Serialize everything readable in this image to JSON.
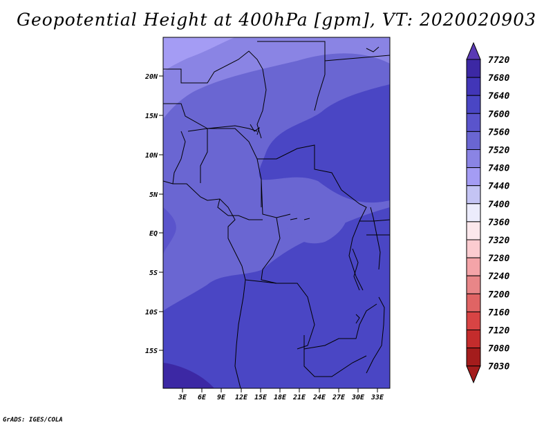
{
  "title": "Geopotential Height at 400hPa [gpm], VT: 2020020903",
  "footer": "GrADS: IGES/COLA",
  "map": {
    "lat_labels": [
      "20N",
      "15N",
      "10N",
      "5N",
      "EQ",
      "5S",
      "10S",
      "15S"
    ],
    "lon_labels": [
      "3E",
      "6E",
      "9E",
      "12E",
      "15E",
      "18E",
      "21E",
      "24E",
      "27E",
      "30E",
      "33E"
    ]
  },
  "colorbar": {
    "labels": [
      "7720",
      "7680",
      "7640",
      "7600",
      "7560",
      "7520",
      "7480",
      "7440",
      "7400",
      "7360",
      "7320",
      "7280",
      "7240",
      "7200",
      "7160",
      "7120",
      "7080",
      "7030"
    ],
    "colors": [
      "#5a3ab4",
      "#3c28a4",
      "#4236b8",
      "#4a46c4",
      "#5a54cc",
      "#6a66d2",
      "#8a84e4",
      "#a49cf4",
      "#c4c4f4",
      "#ececfc",
      "#fce8ec",
      "#fcccd0",
      "#f4a4a8",
      "#e88688",
      "#e06464",
      "#d84444",
      "#c42c2c",
      "#a41c1c",
      "#a41c1c"
    ]
  }
}
